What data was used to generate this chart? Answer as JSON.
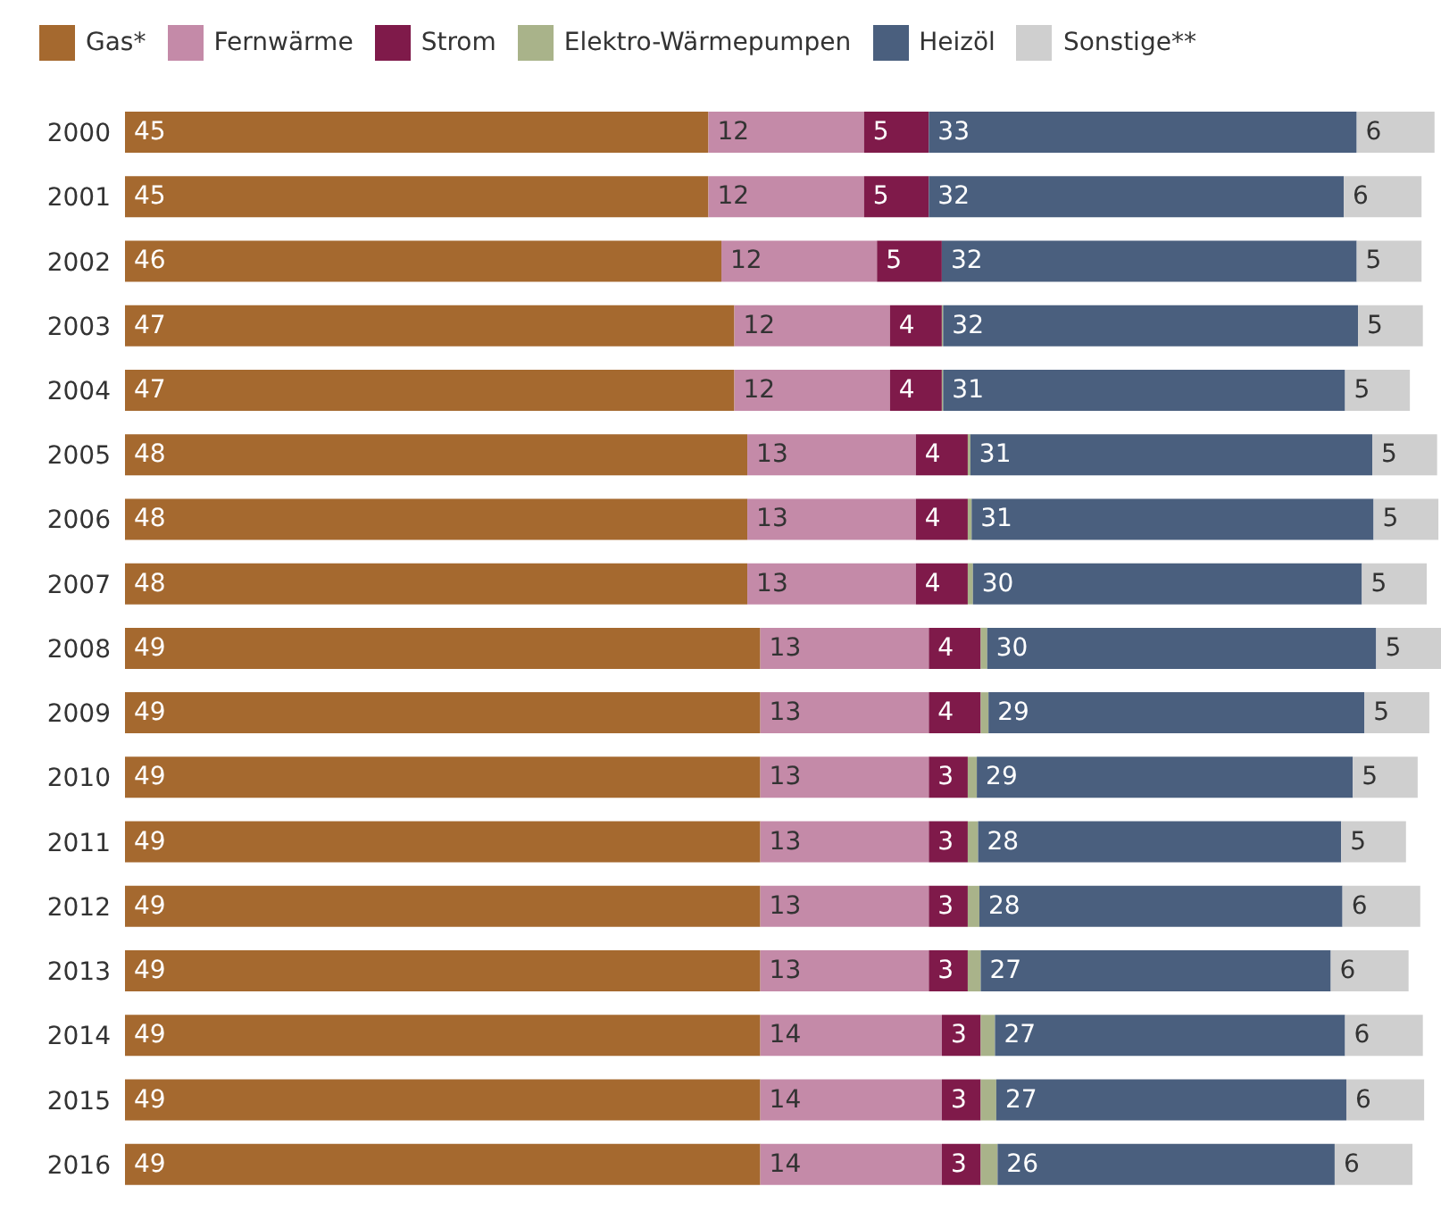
{
  "chart_data": {
    "type": "bar",
    "orientation": "horizontal",
    "stacked": true,
    "legend": "top left",
    "categories": [
      "2000",
      "2001",
      "2002",
      "2003",
      "2004",
      "2005",
      "2006",
      "2007",
      "2008",
      "2009",
      "2010",
      "2011",
      "2012",
      "2013",
      "2014",
      "2015",
      "2016"
    ],
    "series": [
      {
        "name": "Gas*",
        "color": "#a5692f",
        "values": [
          45,
          45,
          46,
          47,
          47,
          48,
          48,
          48,
          49,
          49,
          49,
          49,
          49,
          49,
          49,
          49,
          49
        ],
        "value_labels": [
          "45",
          "45",
          "46",
          "47",
          "47",
          "48",
          "48",
          "48",
          "49",
          "49",
          "49",
          "49",
          "49",
          "49",
          "49",
          "49",
          "49"
        ]
      },
      {
        "name": "Fernwärme",
        "color": "#c48aa8",
        "values": [
          12,
          12,
          12,
          12,
          12,
          13,
          13,
          13,
          13,
          13,
          13,
          13,
          13,
          13,
          14,
          14,
          14
        ],
        "value_labels": [
          "12",
          "12",
          "12",
          "12",
          "12",
          "13",
          "13",
          "13",
          "13",
          "13",
          "13",
          "13",
          "13",
          "13",
          "14",
          "14",
          "14"
        ]
      },
      {
        "name": "Strom",
        "color": "#7f1a4a",
        "values": [
          5,
          5,
          5,
          4,
          4,
          4,
          4,
          4,
          4,
          4,
          3,
          3,
          3,
          3,
          3,
          3,
          3
        ],
        "value_labels": [
          "5",
          "5",
          "5",
          "4",
          "4",
          "4",
          "4",
          "4",
          "4",
          "4",
          "3",
          "3",
          "3",
          "3",
          "3",
          "3",
          "3"
        ]
      },
      {
        "name": "Elektro-Wärmepumpen",
        "color": "#a9b38a",
        "values": [
          0,
          0,
          0,
          0.1,
          0.1,
          0.2,
          0.3,
          0.4,
          0.5,
          0.6,
          0.7,
          0.8,
          0.9,
          1,
          1.1,
          1.2,
          1.3
        ],
        "value_labels": [
          null,
          null,
          null,
          null,
          null,
          null,
          null,
          null,
          null,
          null,
          null,
          null,
          null,
          null,
          null,
          null,
          null
        ]
      },
      {
        "name": "Heizöl",
        "color": "#4a5f7e",
        "values": [
          33,
          32,
          32,
          32,
          31,
          31,
          31,
          30,
          30,
          29,
          29,
          28,
          28,
          27,
          27,
          27,
          26
        ],
        "value_labels": [
          "33",
          "32",
          "32",
          "32",
          "31",
          "31",
          "31",
          "30",
          "30",
          "29",
          "29",
          "28",
          "28",
          "27",
          "27",
          "27",
          "26"
        ]
      },
      {
        "name": "Sonstige**",
        "color": "#cfcfcf",
        "values": [
          6,
          6,
          5,
          5,
          5,
          5,
          5,
          5,
          5,
          5,
          5,
          5,
          6,
          6,
          6,
          6,
          6
        ],
        "value_labels": [
          "6",
          "6",
          "5",
          "5",
          "5",
          "5",
          "5",
          "5",
          "5",
          "5",
          "5",
          "5",
          "6",
          "6",
          "6",
          "6",
          "6"
        ]
      }
    ]
  }
}
